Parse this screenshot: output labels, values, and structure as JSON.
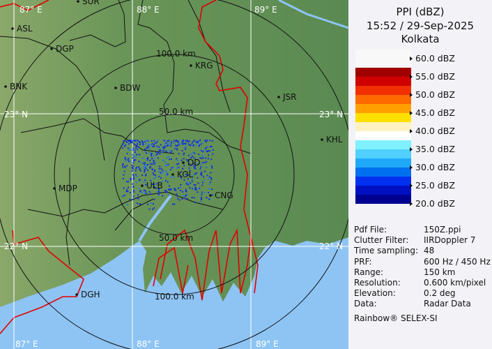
{
  "header": {
    "product": "PPI (dBZ)",
    "datetime": "15:52 / 29-Sep-2025",
    "site": "Kolkata"
  },
  "legend": {
    "unit_labels": [
      "60.0 dBZ",
      "55.0 dBZ",
      "50.0 dBZ",
      "45.0 dBZ",
      "40.0 dBZ",
      "35.0 dBZ",
      "30.0 dBZ",
      "25.0 dBZ",
      "20.0 dBZ"
    ],
    "colors": [
      "#f8f8f8",
      "#f8f8f8",
      "#a00000",
      "#d00000",
      "#f03000",
      "#ff6a00",
      "#ffa000",
      "#ffe000",
      "#fff2c0",
      "#ffffff",
      "#80f0ff",
      "#50d0ff",
      "#20a8f8",
      "#0070f0",
      "#0030f0",
      "#0010c0",
      "#000090"
    ]
  },
  "info": [
    {
      "label": "Pdf File:",
      "value": "150Z.ppi"
    },
    {
      "label": "Clutter Filter:",
      "value": "IIRDoppler 7"
    },
    {
      "label": "Time sampling:",
      "value": "48"
    },
    {
      "label": "PRF:",
      "value": "600 Hz / 450 Hz"
    },
    {
      "label": "Range:",
      "value": "150 km"
    },
    {
      "label": "Resolution:",
      "value": "0.600 km/pixel"
    },
    {
      "label": "Elevation:",
      "value": "0.2 deg"
    },
    {
      "label": "Data:",
      "value": "Radar Data"
    }
  ],
  "footer": "Rainbow® SELEX-SI",
  "map": {
    "grid": {
      "lon_top": [
        "87° E",
        "88° E",
        "89° E"
      ],
      "lon_bottom": [
        "87° E",
        "88° E",
        "89° E"
      ],
      "lat_23_left": "23° N",
      "lat_23_right": "23° N",
      "lat_22_left": "22° N",
      "lat_22_right": "22° N"
    },
    "rings": [
      "50.0 km",
      "100.0 km",
      "50.0 km",
      "100.0 km"
    ],
    "cities": [
      "SUR",
      "ASL",
      "DGP",
      "BNK",
      "BDW",
      "KRG",
      "JSR",
      "KHL",
      "MDP",
      "DD",
      "KOL",
      "ULB",
      "CNG",
      "DGH"
    ],
    "colors": {
      "land": "#5f8f55",
      "sea": "#8ec4f4",
      "border": "#e00000",
      "echo": "#1030e0"
    }
  }
}
